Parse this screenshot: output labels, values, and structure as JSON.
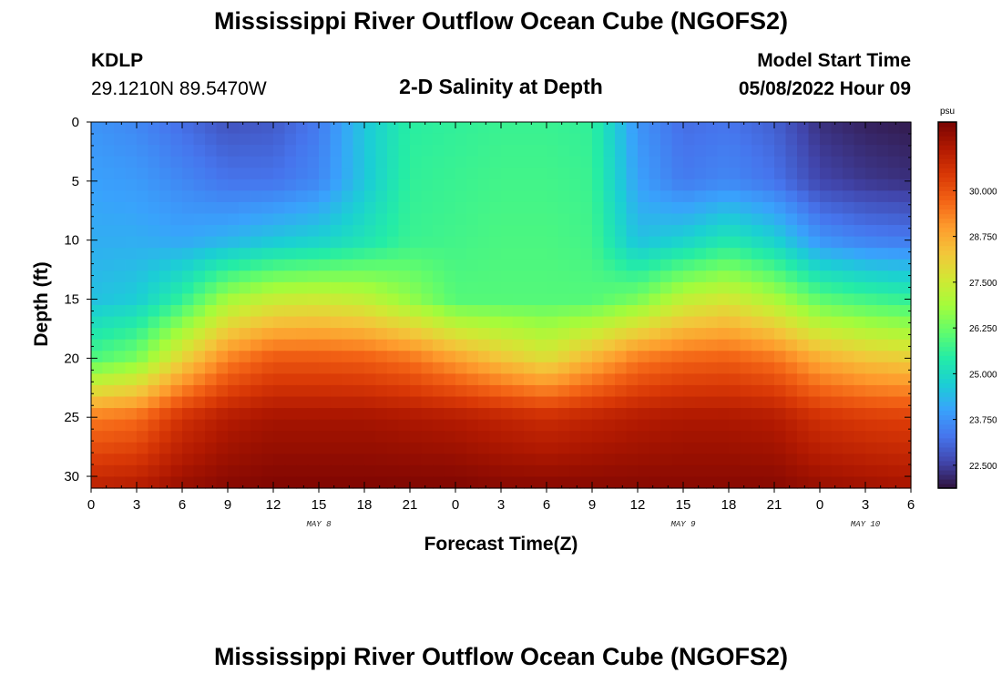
{
  "header": {
    "title": "Mississippi River Outflow Ocean Cube (NGOFS2)",
    "station_id": "KDLP",
    "coordinates": "29.1210N  89.5470W",
    "subtitle": "2-D Salinity at Depth",
    "model_start_label": "Model Start Time",
    "model_start_value": "05/08/2022 Hour 09"
  },
  "footer": {
    "repeat_title": "Mississippi River Outflow Ocean Cube (NGOFS2)"
  },
  "chart_data": {
    "type": "heatmap",
    "xlabel": "Forecast Time(Z)",
    "ylabel": "Depth (ft)",
    "x_tick_labels": [
      "0",
      "3",
      "6",
      "9",
      "12",
      "15",
      "18",
      "21",
      "0",
      "3",
      "6",
      "9",
      "12",
      "15",
      "18",
      "21",
      "0",
      "3",
      "6"
    ],
    "day_labels": [
      "MAY 8",
      "MAY 9",
      "MAY 10"
    ],
    "y_tick_labels": [
      "0",
      "5",
      "10",
      "15",
      "20",
      "25",
      "30"
    ],
    "xlim_hours": [
      0,
      54
    ],
    "ylim_ft": [
      0,
      31
    ],
    "y_inverted": true,
    "colorbar": {
      "unit": "psu",
      "range": [
        21.875,
        31.875
      ],
      "tick_labels": [
        "22.500",
        "23.750",
        "25.000",
        "26.250",
        "27.500",
        "28.750",
        "30.000"
      ],
      "tick_values": [
        22.5,
        23.75,
        25.0,
        26.25,
        27.5,
        28.75,
        30.0
      ],
      "colormap": [
        "#30123b",
        "#4145ab",
        "#4675ed",
        "#39a2fc",
        "#1bcfd4",
        "#24eca6",
        "#61fc6c",
        "#a4fc3b",
        "#d1e834",
        "#f3c63a",
        "#fe9b2d",
        "#f36315",
        "#d93806",
        "#b11901",
        "#7a0402"
      ]
    },
    "grid_hours": [
      0,
      3,
      6,
      9,
      12,
      15,
      18,
      21,
      24,
      27,
      30,
      33,
      36,
      39,
      42,
      45,
      48,
      51,
      54
    ],
    "grid_depths_ft": [
      0,
      5,
      10,
      15,
      20,
      25,
      31
    ],
    "salinity_psu": [
      [
        23.8,
        23.6,
        23.2,
        22.8,
        22.9,
        23.4,
        24.6,
        25.5,
        25.6,
        25.7,
        25.7,
        25.6,
        23.8,
        23.2,
        23.3,
        23.0,
        22.3,
        22.1,
        22.0
      ],
      [
        24.0,
        23.9,
        23.6,
        23.3,
        23.3,
        23.6,
        24.6,
        25.6,
        25.7,
        25.8,
        25.8,
        25.7,
        24.0,
        23.4,
        23.6,
        23.3,
        22.6,
        22.4,
        22.3
      ],
      [
        24.2,
        24.2,
        24.1,
        24.3,
        24.6,
        24.8,
        25.2,
        25.7,
        25.8,
        25.9,
        25.9,
        25.8,
        24.5,
        24.8,
        25.3,
        24.8,
        23.8,
        23.5,
        23.4
      ],
      [
        24.5,
        24.7,
        25.6,
        26.9,
        27.4,
        27.5,
        27.3,
        26.7,
        26.0,
        26.0,
        26.0,
        26.0,
        26.4,
        27.3,
        27.6,
        27.0,
        26.1,
        25.8,
        25.6
      ],
      [
        25.9,
        26.4,
        28.0,
        29.3,
        29.9,
        29.9,
        29.8,
        29.5,
        28.9,
        28.3,
        27.8,
        28.6,
        29.4,
        29.7,
        29.8,
        29.5,
        28.7,
        28.3,
        28.1
      ],
      [
        29.4,
        29.6,
        30.6,
        31.1,
        31.3,
        31.3,
        31.3,
        31.2,
        31.1,
        30.9,
        30.7,
        30.9,
        31.1,
        31.2,
        31.2,
        31.1,
        30.6,
        30.4,
        30.3
      ],
      [
        31.0,
        31.1,
        31.5,
        31.7,
        31.8,
        31.8,
        31.8,
        31.8,
        31.8,
        31.7,
        31.7,
        31.7,
        31.7,
        31.7,
        31.7,
        31.7,
        31.5,
        31.4,
        31.3
      ]
    ]
  }
}
